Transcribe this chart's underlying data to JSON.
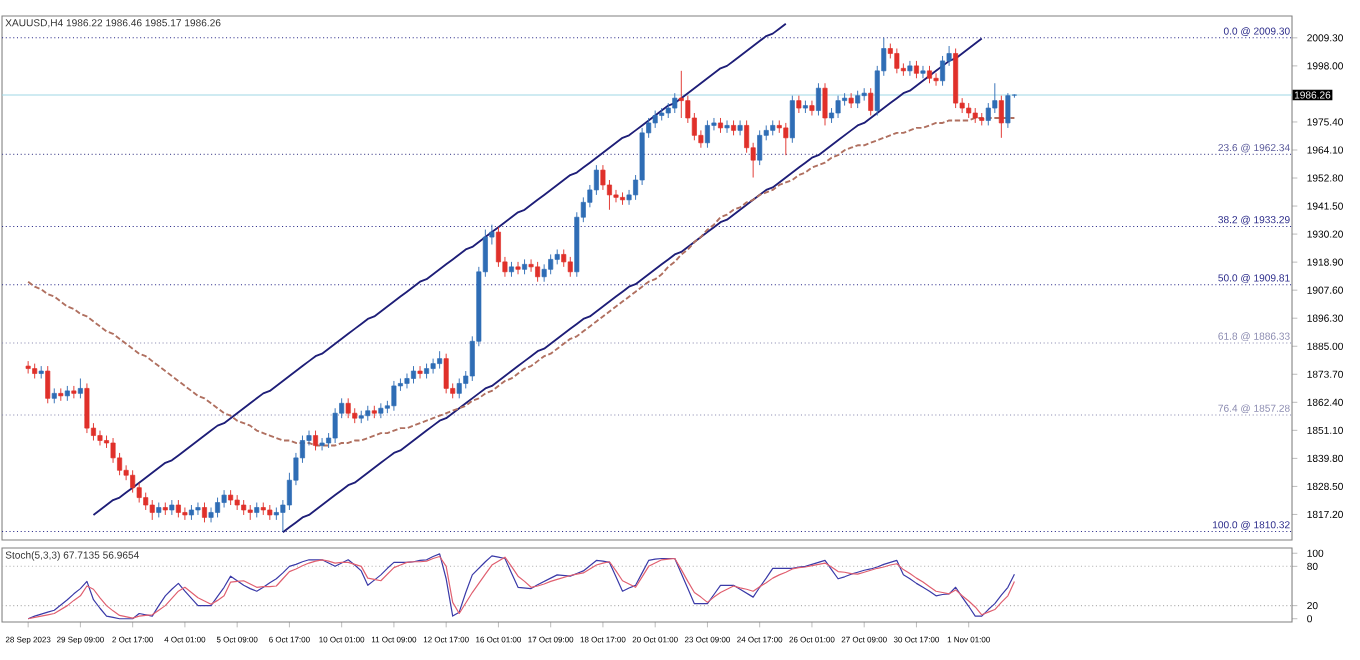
{
  "chart_data": [
    {
      "type": "candlestick",
      "title": "XAUUSD,H4 1986.22 1986.46 1985.17 1986.26",
      "tick_labels": "y",
      "categories": [
        null,
        null,
        null,
        null,
        null,
        null,
        null,
        null,
        null,
        null,
        null,
        null,
        null,
        null,
        null,
        null,
        null,
        null,
        null,
        null,
        null,
        null,
        null,
        null,
        null,
        null,
        null,
        null,
        null,
        null,
        null,
        null,
        null,
        null,
        null,
        null,
        null,
        null,
        null,
        null,
        null,
        null,
        null,
        null,
        null,
        null,
        null,
        null,
        null,
        null,
        null,
        null,
        null,
        null,
        null,
        null,
        null,
        null,
        null,
        null,
        null,
        null,
        null,
        null,
        null,
        null,
        null,
        null,
        null,
        null,
        null,
        null,
        null,
        null,
        null,
        null,
        null,
        null,
        null,
        null,
        null,
        null,
        null,
        null,
        null,
        null,
        null,
        null,
        null,
        null,
        null,
        null,
        null,
        null,
        null,
        null,
        null,
        null,
        null,
        null,
        null,
        null,
        null,
        null,
        null,
        null,
        null,
        null,
        null,
        null,
        null,
        null,
        null,
        null,
        null,
        null,
        null,
        null,
        null,
        null,
        null,
        null,
        null,
        null,
        null,
        null,
        null,
        null,
        null,
        null,
        null,
        null,
        null,
        null,
        null,
        null,
        null,
        null,
        null,
        null,
        null,
        null,
        null,
        null,
        null,
        null,
        null,
        null,
        null,
        null,
        null,
        null
      ],
      "ohlc": [
        [
          1877,
          1879,
          1874,
          1876
        ],
        [
          1876,
          1878,
          1872,
          1874
        ],
        [
          1874,
          1877,
          1872,
          1875
        ],
        [
          1875,
          1877,
          1862,
          1864
        ],
        [
          1864,
          1868,
          1862,
          1866
        ],
        [
          1866,
          1868,
          1863,
          1865
        ],
        [
          1865,
          1869,
          1863,
          1867
        ],
        [
          1867,
          1869,
          1864,
          1866
        ],
        [
          1866,
          1872,
          1864,
          1868
        ],
        [
          1868,
          1870,
          1850,
          1852
        ],
        [
          1852,
          1854,
          1847,
          1849
        ],
        [
          1849,
          1851,
          1845,
          1847
        ],
        [
          1847,
          1849,
          1844,
          1846
        ],
        [
          1846,
          1848,
          1838,
          1840
        ],
        [
          1840,
          1842,
          1833,
          1835
        ],
        [
          1835,
          1837,
          1831,
          1833
        ],
        [
          1833,
          1835,
          1826,
          1828
        ],
        [
          1828,
          1830,
          1822,
          1824
        ],
        [
          1824,
          1826,
          1819,
          1821
        ],
        [
          1821,
          1823,
          1815,
          1818
        ],
        [
          1818,
          1822,
          1816,
          1820
        ],
        [
          1820,
          1822,
          1817,
          1819
        ],
        [
          1819,
          1823,
          1817,
          1821
        ],
        [
          1821,
          1823,
          1816,
          1818
        ],
        [
          1818,
          1820,
          1815,
          1817
        ],
        [
          1817,
          1821,
          1815,
          1819
        ],
        [
          1819,
          1822,
          1817,
          1820
        ],
        [
          1820,
          1822,
          1814,
          1816
        ],
        [
          1816,
          1820,
          1814,
          1818
        ],
        [
          1818,
          1824,
          1816,
          1822
        ],
        [
          1822,
          1827,
          1820,
          1825
        ],
        [
          1825,
          1827,
          1821,
          1823
        ],
        [
          1823,
          1825,
          1819,
          1821
        ],
        [
          1821,
          1823,
          1817,
          1819
        ],
        [
          1819,
          1821,
          1815,
          1818
        ],
        [
          1818,
          1822,
          1816,
          1820
        ],
        [
          1820,
          1822,
          1817,
          1819
        ],
        [
          1819,
          1821,
          1815,
          1817
        ],
        [
          1817,
          1820,
          1815,
          1818
        ],
        [
          1818,
          1823,
          1810.3,
          1821
        ],
        [
          1821,
          1834,
          1819,
          1831
        ],
        [
          1831,
          1842,
          1829,
          1840
        ],
        [
          1840,
          1849,
          1838,
          1847
        ],
        [
          1847,
          1851,
          1845,
          1849
        ],
        [
          1849,
          1851,
          1843,
          1845
        ],
        [
          1845,
          1848,
          1843,
          1846
        ],
        [
          1846,
          1850,
          1844,
          1848
        ],
        [
          1848,
          1860,
          1846,
          1858
        ],
        [
          1858,
          1864,
          1856,
          1862
        ],
        [
          1862,
          1864,
          1856,
          1858
        ],
        [
          1858,
          1860,
          1854,
          1856
        ],
        [
          1856,
          1859,
          1854,
          1857
        ],
        [
          1857,
          1861,
          1855,
          1859
        ],
        [
          1859,
          1861,
          1856,
          1858
        ],
        [
          1858,
          1862,
          1856,
          1860
        ],
        [
          1860,
          1863,
          1858,
          1861
        ],
        [
          1861,
          1871,
          1859,
          1869
        ],
        [
          1869,
          1872,
          1867,
          1870
        ],
        [
          1870,
          1874,
          1868,
          1872
        ],
        [
          1872,
          1877,
          1870,
          1875
        ],
        [
          1875,
          1877,
          1872,
          1874
        ],
        [
          1874,
          1878,
          1872,
          1876
        ],
        [
          1876,
          1880,
          1874,
          1878
        ],
        [
          1878,
          1883,
          1876,
          1880
        ],
        [
          1880,
          1882,
          1866,
          1868
        ],
        [
          1868,
          1870,
          1864,
          1866
        ],
        [
          1866,
          1872,
          1864,
          1870
        ],
        [
          1870,
          1875,
          1868,
          1873
        ],
        [
          1873,
          1889,
          1871,
          1887
        ],
        [
          1887,
          1917,
          1885,
          1915
        ],
        [
          1915,
          1932,
          1913,
          1929
        ],
        [
          1929,
          1934,
          1926,
          1931
        ],
        [
          1931,
          1933,
          1917,
          1919
        ],
        [
          1919,
          1921,
          1913,
          1915
        ],
        [
          1915,
          1919,
          1913,
          1917
        ],
        [
          1917,
          1919,
          1914,
          1916
        ],
        [
          1916,
          1920,
          1914,
          1918
        ],
        [
          1918,
          1920,
          1915,
          1917
        ],
        [
          1917,
          1919,
          1911,
          1913
        ],
        [
          1913,
          1918,
          1911,
          1916
        ],
        [
          1916,
          1922,
          1914,
          1920
        ],
        [
          1920,
          1924,
          1918,
          1922
        ],
        [
          1922,
          1924,
          1917,
          1919
        ],
        [
          1919,
          1921,
          1913,
          1915
        ],
        [
          1915,
          1939,
          1913,
          1937
        ],
        [
          1937,
          1945,
          1935,
          1943
        ],
        [
          1943,
          1950,
          1941,
          1948
        ],
        [
          1948,
          1958,
          1946,
          1956
        ],
        [
          1956,
          1958,
          1948,
          1950
        ],
        [
          1950,
          1952,
          1940,
          1946
        ],
        [
          1946,
          1948,
          1943,
          1945
        ],
        [
          1945,
          1947,
          1942,
          1944
        ],
        [
          1944,
          1948,
          1942,
          1946
        ],
        [
          1946,
          1954,
          1944,
          1952
        ],
        [
          1952,
          1973,
          1950,
          1971
        ],
        [
          1971,
          1977,
          1969,
          1975
        ],
        [
          1975,
          1980,
          1973,
          1978
        ],
        [
          1978,
          1981,
          1976,
          1979
        ],
        [
          1979,
          1983,
          1977,
          1981
        ],
        [
          1981,
          1987,
          1979,
          1985
        ],
        [
          1985,
          1996,
          1977,
          1984
        ],
        [
          1984,
          1986,
          1975,
          1977
        ],
        [
          1977,
          1979,
          1968,
          1970
        ],
        [
          1970,
          1972,
          1965,
          1967
        ],
        [
          1967,
          1976,
          1965,
          1974
        ],
        [
          1974,
          1977,
          1972,
          1975
        ],
        [
          1975,
          1977,
          1971,
          1973
        ],
        [
          1973,
          1976,
          1971,
          1974
        ],
        [
          1974,
          1976,
          1970,
          1972
        ],
        [
          1972,
          1976,
          1970,
          1974
        ],
        [
          1974,
          1976,
          1963,
          1965
        ],
        [
          1965,
          1967,
          1953,
          1960
        ],
        [
          1960,
          1972,
          1958,
          1970
        ],
        [
          1970,
          1974,
          1968,
          1972
        ],
        [
          1972,
          1976,
          1970,
          1974
        ],
        [
          1974,
          1976,
          1971,
          1973
        ],
        [
          1973,
          1975,
          1962,
          1969
        ],
        [
          1969,
          1986,
          1967,
          1984
        ],
        [
          1984,
          1986,
          1979,
          1981
        ],
        [
          1981,
          1984,
          1979,
          1982
        ],
        [
          1982,
          1984,
          1978,
          1980
        ],
        [
          1980,
          1991,
          1978,
          1989
        ],
        [
          1989,
          1991,
          1974,
          1977
        ],
        [
          1977,
          1981,
          1975,
          1979
        ],
        [
          1979,
          1986,
          1977,
          1984
        ],
        [
          1984,
          1987,
          1982,
          1985
        ],
        [
          1985,
          1987,
          1981,
          1983
        ],
        [
          1983,
          1988,
          1981,
          1986
        ],
        [
          1986,
          1989,
          1984,
          1987
        ],
        [
          1987,
          1989,
          1978,
          1980
        ],
        [
          1980,
          1998,
          1978,
          1996
        ],
        [
          1996,
          2009.3,
          1994,
          2005
        ],
        [
          2005,
          2007,
          2001,
          2003
        ],
        [
          2003,
          2005,
          1995,
          1997
        ],
        [
          1997,
          1999,
          1994,
          1996
        ],
        [
          1996,
          2000,
          1994,
          1998
        ],
        [
          1998,
          2000,
          1993,
          1995
        ],
        [
          1995,
          1998,
          1993,
          1996
        ],
        [
          1996,
          1998,
          1991,
          1993
        ],
        [
          1993,
          1995,
          1990,
          1992
        ],
        [
          1992,
          2002,
          1990,
          2000
        ],
        [
          2000,
          2006,
          1998,
          2003
        ],
        [
          2003,
          2005,
          1981,
          1983
        ],
        [
          1983,
          1985,
          1979,
          1981
        ],
        [
          1981,
          1983,
          1977,
          1979
        ],
        [
          1979,
          1981,
          1975,
          1977
        ],
        [
          1977,
          1979,
          1974,
          1976
        ],
        [
          1976,
          1983,
          1974,
          1981
        ],
        [
          1981,
          1991,
          1979,
          1984
        ],
        [
          1984,
          1986,
          1969,
          1975
        ],
        [
          1975,
          1987,
          1973,
          1986
        ],
        [
          1986.22,
          1986.46,
          1985.17,
          1986.26
        ]
      ],
      "colors": [
        "#e0302a",
        "#e0302a",
        "#2f6db5",
        "#e0302a",
        "#2f6db5",
        "#e0302a",
        "#2f6db5",
        "#e0302a",
        "#2f6db5",
        "#e0302a",
        "#e0302a",
        "#e0302a",
        "#e0302a",
        "#e0302a",
        "#e0302a",
        "#e0302a",
        "#e0302a",
        "#e0302a",
        "#e0302a",
        "#e0302a",
        "#2f6db5",
        "#e0302a",
        "#2f6db5",
        "#e0302a",
        "#e0302a",
        "#2f6db5",
        "#2f6db5",
        "#e0302a",
        "#2f6db5",
        "#2f6db5",
        "#2f6db5",
        "#e0302a",
        "#e0302a",
        "#e0302a",
        "#e0302a",
        "#2f6db5",
        "#e0302a",
        "#e0302a",
        "#2f6db5",
        "#2f6db5",
        "#2f6db5",
        "#2f6db5",
        "#2f6db5",
        "#2f6db5",
        "#e0302a",
        "#2f6db5",
        "#2f6db5",
        "#2f6db5",
        "#2f6db5",
        "#e0302a",
        "#e0302a",
        "#2f6db5",
        "#2f6db5",
        "#e0302a",
        "#2f6db5",
        "#2f6db5",
        "#2f6db5",
        "#2f6db5",
        "#2f6db5",
        "#2f6db5",
        "#e0302a",
        "#2f6db5",
        "#2f6db5",
        "#2f6db5",
        "#e0302a",
        "#e0302a",
        "#2f6db5",
        "#2f6db5",
        "#2f6db5",
        "#2f6db5",
        "#2f6db5",
        "#2f6db5",
        "#e0302a",
        "#e0302a",
        "#2f6db5",
        "#e0302a",
        "#2f6db5",
        "#e0302a",
        "#e0302a",
        "#2f6db5",
        "#2f6db5",
        "#2f6db5",
        "#e0302a",
        "#e0302a",
        "#2f6db5",
        "#2f6db5",
        "#2f6db5",
        "#2f6db5",
        "#e0302a",
        "#e0302a",
        "#e0302a",
        "#e0302a",
        "#2f6db5",
        "#2f6db5",
        "#2f6db5",
        "#2f6db5",
        "#2f6db5",
        "#2f6db5",
        "#2f6db5",
        "#2f6db5",
        "#e0302a",
        "#e0302a",
        "#e0302a",
        "#e0302a",
        "#2f6db5",
        "#2f6db5",
        "#e0302a",
        "#2f6db5",
        "#e0302a",
        "#2f6db5",
        "#e0302a",
        "#e0302a",
        "#2f6db5",
        "#2f6db5",
        "#2f6db5",
        "#e0302a",
        "#e0302a",
        "#2f6db5",
        "#e0302a",
        "#2f6db5",
        "#e0302a",
        "#2f6db5",
        "#e0302a",
        "#2f6db5",
        "#2f6db5",
        "#2f6db5",
        "#e0302a",
        "#2f6db5",
        "#2f6db5",
        "#e0302a",
        "#2f6db5",
        "#2f6db5",
        "#e0302a",
        "#e0302a",
        "#e0302a",
        "#2f6db5",
        "#e0302a",
        "#2f6db5",
        "#e0302a",
        "#e0302a",
        "#2f6db5",
        "#2f6db5",
        "#e0302a",
        "#e0302a",
        "#e0302a",
        "#e0302a",
        "#e0302a",
        "#2f6db5",
        "#2f6db5",
        "#e0302a",
        "#2f6db5",
        "#2f6db5"
      ],
      "series": [
        {
          "type": "line",
          "color": "#1e1e78",
          "line_style": "solid",
          "values": [
            null,
            null,
            null,
            null,
            null,
            null,
            null,
            null,
            null,
            null,
            1817,
            1819,
            1821,
            1823,
            1824,
            1826,
            1828,
            1830,
            1832,
            1834,
            1836,
            1838,
            1839,
            1841,
            1843,
            1845,
            1847,
            1849,
            1851,
            1853,
            1854,
            1856,
            1858,
            1860,
            1862,
            1864,
            1866,
            1867,
            1869,
            1871,
            1873,
            1875,
            1877,
            1879,
            1881,
            1882,
            1884,
            1886,
            1888,
            1890,
            1892,
            1894,
            1896,
            1897,
            1899,
            1901,
            1903,
            1905,
            1907,
            1909,
            1911,
            1912,
            1914,
            1916,
            1918,
            1920,
            1922,
            1924,
            1925,
            1927,
            1929,
            1931,
            1933,
            1935,
            1937,
            1939,
            1940,
            1942,
            1944,
            1946,
            1948,
            1950,
            1952,
            1954,
            1955,
            1957,
            1959,
            1961,
            1963,
            1965,
            1967,
            1969,
            1970,
            1972,
            1974,
            1976,
            1978,
            1980,
            1982,
            1983,
            1985,
            1987,
            1989,
            1991,
            1993,
            1995,
            1997,
            1998,
            2000,
            2002,
            2004,
            2006,
            2008,
            2010,
            2011,
            2013,
            2015,
            null,
            null,
            null,
            null,
            null,
            null,
            null,
            null,
            null,
            null,
            null,
            null,
            null,
            null,
            null,
            null,
            null,
            null,
            null,
            null,
            null,
            null,
            null,
            null,
            null,
            null,
            null,
            null,
            null,
            null,
            null,
            null,
            null,
            null,
            null
          ]
        },
        {
          "type": "line",
          "color": "#1e1e78",
          "line_style": "solid",
          "values": [
            null,
            null,
            null,
            null,
            null,
            null,
            null,
            null,
            null,
            null,
            null,
            null,
            null,
            null,
            null,
            null,
            null,
            null,
            null,
            null,
            null,
            null,
            null,
            null,
            null,
            null,
            null,
            null,
            null,
            null,
            null,
            null,
            null,
            null,
            null,
            null,
            null,
            null,
            null,
            1810,
            1812,
            1814,
            1816,
            1817,
            1819,
            1821,
            1823,
            1825,
            1827,
            1829,
            1830,
            1832,
            1834,
            1836,
            1838,
            1840,
            1842,
            1843,
            1845,
            1847,
            1849,
            1851,
            1853,
            1855,
            1856,
            1858,
            1860,
            1862,
            1864,
            1866,
            1868,
            1869,
            1871,
            1873,
            1875,
            1877,
            1879,
            1881,
            1883,
            1884,
            1886,
            1888,
            1890,
            1892,
            1894,
            1896,
            1897,
            1899,
            1901,
            1903,
            1905,
            1907,
            1909,
            1910,
            1912,
            1914,
            1916,
            1918,
            1920,
            1922,
            1923,
            1925,
            1927,
            1929,
            1931,
            1933,
            1935,
            1936,
            1938,
            1940,
            1942,
            1944,
            1946,
            1948,
            1949,
            1951,
            1953,
            1955,
            1957,
            1959,
            1961,
            1962,
            1964,
            1966,
            1968,
            1970,
            1972,
            1974,
            1975,
            1977,
            1979,
            1981,
            1983,
            1985,
            1987,
            1988,
            1990,
            1992,
            1994,
            1996,
            1998,
            2000,
            2001,
            2003,
            2005,
            2007,
            2009,
            null,
            null,
            null,
            null,
            null
          ]
        },
        {
          "type": "line",
          "color": "#b07060",
          "line_style": "dashed",
          "values": [
            1911,
            1909,
            1908,
            1906,
            1905,
            1903,
            1901,
            1900,
            1898,
            1897,
            1895,
            1893,
            1891,
            1890,
            1888,
            1886,
            1884,
            1882,
            1881,
            1879,
            1877,
            1875,
            1873,
            1871,
            1869,
            1867,
            1865,
            1864,
            1862,
            1860,
            1858,
            1857,
            1855,
            1854,
            1853,
            1851,
            1850,
            1849,
            1848,
            1847,
            1847,
            1846,
            1846,
            1846,
            1845,
            1845,
            1845,
            1845,
            1846,
            1846,
            1847,
            1847,
            1848,
            1849,
            1850,
            1850,
            1851,
            1852,
            1852,
            1853,
            1854,
            1855,
            1856,
            1857,
            1858,
            1859,
            1860,
            1861,
            1863,
            1864,
            1866,
            1867,
            1869,
            1871,
            1872,
            1874,
            1876,
            1877,
            1879,
            1881,
            1882,
            1884,
            1886,
            1888,
            1889,
            1891,
            1893,
            1895,
            1897,
            1899,
            1901,
            1903,
            1905,
            1907,
            1909,
            1911,
            1912,
            1914,
            1917,
            1919,
            1922,
            1924,
            1927,
            1929,
            1932,
            1934,
            1937,
            1938,
            1940,
            1941,
            1943,
            1944,
            1946,
            1947,
            1948,
            1950,
            1951,
            1952,
            1954,
            1955,
            1957,
            1958,
            1959,
            1961,
            1962,
            1964,
            1965,
            1966,
            1966,
            1967,
            1968,
            1969,
            1970,
            1971,
            1971,
            1972,
            1973,
            1973,
            1974,
            1975,
            1975,
            1976,
            1976,
            1976,
            1976,
            1977,
            1977,
            1977,
            1977,
            1977,
            1977,
            1977
          ]
        }
      ],
      "ylim": [
        1806.9,
        2018.1
      ],
      "yticks": [
        {
          "value": 2009.3,
          "label": "2009.30"
        },
        {
          "value": 1998.0,
          "label": "1998.00"
        },
        {
          "value": 1975.4,
          "label": "1975.40"
        },
        {
          "value": 1964.1,
          "label": "1964.10"
        },
        {
          "value": 1952.8,
          "label": "1952.80"
        },
        {
          "value": 1941.5,
          "label": "1941.50"
        },
        {
          "value": 1930.2,
          "label": "1930.20"
        },
        {
          "value": 1918.9,
          "label": "1918.90"
        },
        {
          "value": 1907.6,
          "label": "1907.60"
        },
        {
          "value": 1896.3,
          "label": "1896.30"
        },
        {
          "value": 1885.0,
          "label": "1885.00"
        },
        {
          "value": 1873.7,
          "label": "1873.70"
        },
        {
          "value": 1862.4,
          "label": "1862.40"
        },
        {
          "value": 1851.1,
          "label": "1851.10"
        },
        {
          "value": 1839.8,
          "label": "1839.80"
        },
        {
          "value": 1828.5,
          "label": "1828.50"
        },
        {
          "value": 1817.2,
          "label": "1817.20"
        }
      ],
      "ref_lines": [
        {
          "axis": "y",
          "value": 2009.3,
          "label": "0.0 @ 2009.30",
          "color": "#2b2b8a",
          "line_style": "dotted"
        },
        {
          "axis": "y",
          "value": 1962.34,
          "label": "23.6 @ 1962.34",
          "color": "#5b5b9b",
          "line_style": "dotted"
        },
        {
          "axis": "y",
          "value": 1933.29,
          "label": "38.2 @ 1933.29",
          "color": "#2b2b8a",
          "line_style": "dotted"
        },
        {
          "axis": "y",
          "value": 1909.81,
          "label": "50.0 @ 1909.81",
          "color": "#2b2b8a",
          "line_style": "dotted"
        },
        {
          "axis": "y",
          "value": 1886.33,
          "label": "61.8 @ 1886.33",
          "color": "#8a8ab0",
          "line_style": "dotted"
        },
        {
          "axis": "y",
          "value": 1857.28,
          "label": "76.4 @ 1857.28",
          "color": "#8a8ab0",
          "line_style": "dotted"
        },
        {
          "axis": "y",
          "value": 1810.32,
          "label": "100.0 @ 1810.32",
          "color": "#2b2b8a",
          "line_style": "dotted"
        },
        {
          "axis": "y",
          "value": 1986.26,
          "label": "1986.26",
          "color": "#9fd8e6",
          "line_style": "solid"
        }
      ]
    },
    {
      "type": "line",
      "title": "Stoch(5,3,3) 67.7135 56.9654",
      "categories": [
        "28 Sep 2023",
        null,
        null,
        null,
        null,
        null,
        null,
        null,
        "29 Sep 09:00",
        null,
        null,
        null,
        null,
        null,
        null,
        null,
        "2 Oct 17:00",
        null,
        null,
        null,
        null,
        null,
        null,
        null,
        "4 Oct 01:00",
        null,
        null,
        null,
        null,
        null,
        null,
        null,
        "5 Oct 09:00",
        null,
        null,
        null,
        null,
        null,
        null,
        null,
        "6 Oct 17:00",
        null,
        null,
        null,
        null,
        null,
        null,
        null,
        "10 Oct 01:00",
        null,
        null,
        null,
        null,
        null,
        null,
        null,
        "11 Oct 09:00",
        null,
        null,
        null,
        null,
        null,
        null,
        null,
        "12 Oct 17:00",
        null,
        null,
        null,
        null,
        null,
        null,
        null,
        "16 Oct 01:00",
        null,
        null,
        null,
        null,
        null,
        null,
        null,
        "17 Oct 09:00",
        null,
        null,
        null,
        null,
        null,
        null,
        null,
        "18 Oct 17:00",
        null,
        null,
        null,
        null,
        null,
        null,
        null,
        "20 Oct 01:00",
        null,
        null,
        null,
        null,
        null,
        null,
        null,
        "23 Oct 09:00",
        null,
        null,
        null,
        null,
        null,
        null,
        null,
        "24 Oct 17:00",
        null,
        null,
        null,
        null,
        null,
        null,
        null,
        "26 Oct 01:00",
        null,
        null,
        null,
        null,
        null,
        null,
        null,
        "27 Oct 09:00",
        null,
        null,
        null,
        null,
        null,
        null,
        null,
        "30 Oct 17:00",
        null,
        null,
        null,
        null,
        null,
        null,
        null,
        "1 Nov 01:00",
        null,
        null,
        null,
        null,
        null,
        null,
        null
      ],
      "series": [
        {
          "color": "#3a3aa8",
          "values": [
            0,
            4,
            7,
            10,
            13,
            21,
            29,
            38,
            46,
            57,
            29,
            16,
            4,
            2,
            0,
            0,
            0,
            8,
            6,
            4,
            20,
            35,
            45,
            54,
            42,
            31,
            20,
            20,
            20,
            34,
            48,
            65,
            58,
            51,
            46,
            42,
            48,
            55,
            61,
            70,
            80,
            83,
            87,
            90,
            90,
            90,
            85,
            80,
            85,
            90,
            82,
            73,
            51,
            59,
            67,
            77,
            86,
            86,
            86,
            87,
            89,
            90,
            95,
            99,
            61,
            4,
            10,
            40,
            67,
            77,
            87,
            96,
            94,
            92,
            70,
            48,
            47,
            46,
            52,
            57,
            62,
            67,
            66,
            65,
            69,
            73,
            81,
            89,
            88,
            86,
            64,
            42,
            47,
            51,
            70,
            89,
            91,
            92,
            92,
            92,
            69,
            46,
            23,
            23,
            23,
            37,
            51,
            51,
            51,
            45,
            39,
            33,
            48,
            62,
            77,
            77,
            77,
            77,
            79,
            80,
            83,
            86,
            89,
            75,
            61,
            64,
            68,
            71,
            74,
            76,
            79,
            83,
            86,
            89,
            67,
            61,
            54,
            48,
            42,
            35,
            37,
            38,
            48,
            33,
            19,
            4,
            4,
            14,
            23,
            36,
            48,
            68
          ]
        },
        {
          "color": "#e06070",
          "values": [
            0,
            2,
            4,
            6,
            8,
            14,
            20,
            28,
            35,
            50,
            45,
            32,
            20,
            12,
            5,
            3,
            1,
            4,
            5,
            6,
            13,
            20,
            31,
            42,
            48,
            40,
            32,
            27,
            22,
            28,
            35,
            56,
            57,
            58,
            53,
            48,
            49,
            49,
            50,
            61,
            72,
            76,
            81,
            85,
            88,
            90,
            88,
            85,
            86,
            86,
            83,
            80,
            62,
            60,
            58,
            68,
            78,
            82,
            86,
            87,
            87,
            88,
            92,
            95,
            80,
            25,
            8,
            24,
            40,
            54,
            68,
            82,
            88,
            94,
            80,
            65,
            57,
            48,
            50,
            53,
            57,
            60,
            63,
            66,
            68,
            70,
            76,
            82,
            85,
            87,
            73,
            58,
            53,
            48,
            64,
            80,
            85,
            90,
            91,
            92,
            75,
            57,
            40,
            33,
            25,
            33,
            40,
            45,
            50,
            47,
            45,
            42,
            49,
            55,
            62,
            67,
            71,
            76,
            78,
            79,
            81,
            83,
            85,
            79,
            72,
            71,
            69,
            68,
            71,
            74,
            77,
            79,
            82,
            84,
            75,
            69,
            62,
            56,
            49,
            42,
            40,
            38,
            44,
            35,
            27,
            18,
            6,
            10,
            14,
            25,
            35,
            57
          ]
        }
      ],
      "ylim": [
        -5,
        108
      ],
      "yticks": [
        0,
        20,
        80,
        100
      ],
      "ref_lines": [
        {
          "axis": "y",
          "value": 80,
          "color": "#b0b0b0",
          "line_style": "dotted"
        },
        {
          "axis": "y",
          "value": 20,
          "color": "#b0b0b0",
          "line_style": "dotted"
        }
      ]
    }
  ]
}
